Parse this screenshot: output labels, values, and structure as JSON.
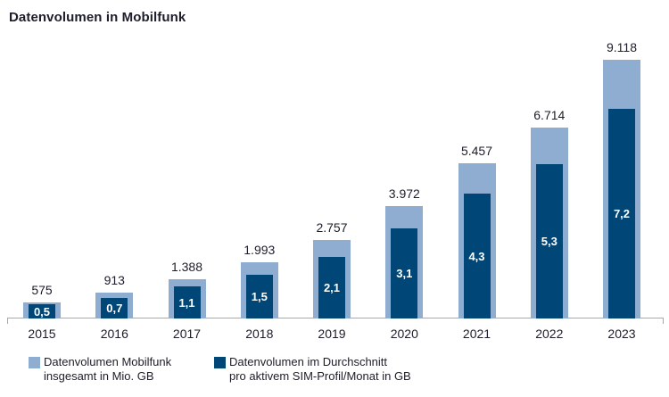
{
  "title": "Datenvolumen in Mobilfunk",
  "colors": {
    "series_total_light_blue": "#8fadd1",
    "series_persim_dark_blue": "#004778",
    "text_dark_navy": "#1d1d2b",
    "axis_gray": "#a9a9a9",
    "bar_value_white": "#ffffff"
  },
  "legend": {
    "items": [
      {
        "swatch": "light-blue-square",
        "line1": "Datenvolumen Mobilfunk",
        "line2": "insgesamt in Mio. GB"
      },
      {
        "swatch": "dark-blue-square",
        "line1": "Datenvolumen im Durchschnitt",
        "line2": "pro aktivem SIM-Profil/Monat in GB"
      }
    ]
  },
  "chart_data": {
    "type": "bar",
    "title": "Datenvolumen in Mobilfunk",
    "categories": [
      "2015",
      "2016",
      "2017",
      "2018",
      "2019",
      "2020",
      "2021",
      "2022",
      "2023"
    ],
    "series": [
      {
        "name": "Datenvolumen Mobilfunk insgesamt in Mio. GB",
        "values": [
          575,
          913,
          1388,
          1993,
          2757,
          3972,
          5457,
          6714,
          9118
        ],
        "labels": [
          "575",
          "913",
          "1.388",
          "1.993",
          "2.757",
          "3.972",
          "5.457",
          "6.714",
          "9.118"
        ],
        "color": "#8fadd1",
        "label_position": "above-bar"
      },
      {
        "name": "Datenvolumen im Durchschnitt pro aktivem SIM-Profil/Monat in GB",
        "values": [
          0.5,
          0.7,
          1.1,
          1.5,
          2.1,
          3.1,
          4.3,
          5.3,
          7.2
        ],
        "labels": [
          "0,5",
          "0,7",
          "1,1",
          "1,5",
          "2,1",
          "3,1",
          "4,3",
          "5,3",
          "7,2"
        ],
        "color": "#004778",
        "label_position": "inside-bar-white"
      }
    ],
    "xlabel": "",
    "ylabel": "",
    "axis_scale_total": [
      0,
      9118
    ],
    "axis_scale_persim": [
      0,
      7.2
    ],
    "grid": false,
    "legend_position": "bottom-left",
    "bar_style": "nested-overlay"
  }
}
